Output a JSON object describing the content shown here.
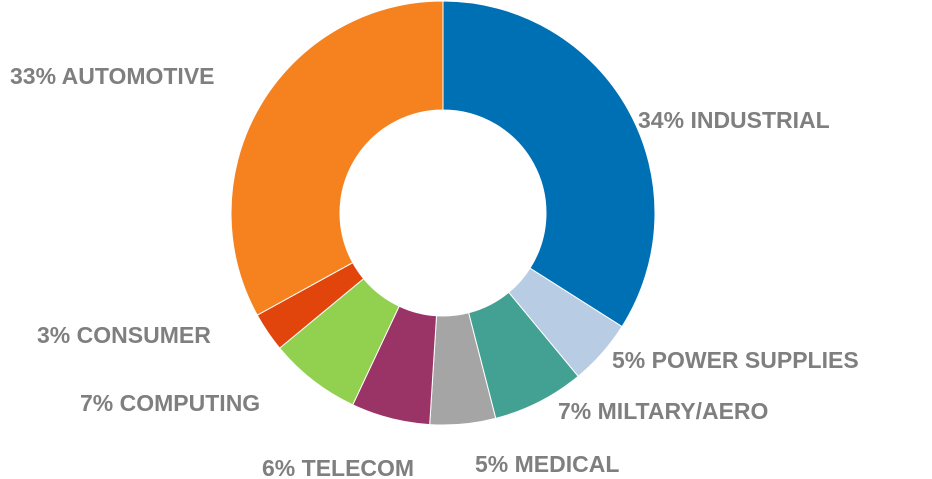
{
  "chart_data": {
    "type": "donut",
    "categories": [
      "INDUSTRIAL",
      "POWER SUPPLIES",
      "MILTARY/AERO",
      "MEDICAL",
      "TELECOM",
      "COMPUTING",
      "CONSUMER",
      "AUTOMOTIVE"
    ],
    "values": [
      34,
      5,
      7,
      5,
      6,
      7,
      3,
      33
    ],
    "value_labels": [
      "34%",
      "5%",
      "7%",
      "5%",
      "6%",
      "7%",
      "3%",
      "33%"
    ],
    "colors": [
      "#0070b5",
      "#b8cce4",
      "#42a193",
      "#a5a5a5",
      "#9b3466",
      "#92d050",
      "#e2450c",
      "#f5821f"
    ]
  }
}
